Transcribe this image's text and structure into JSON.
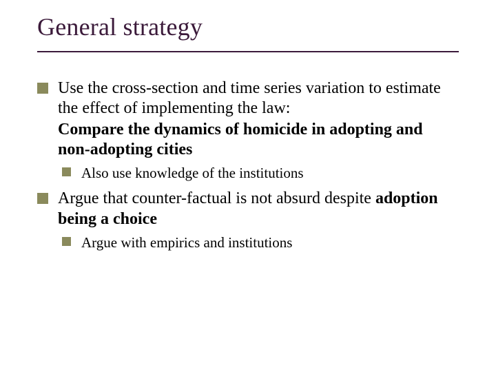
{
  "slide": {
    "title": "General strategy",
    "title_color": "#3b1a3a",
    "title_fontsize": 36,
    "rule_color": "#3b1a3a",
    "bullet_color": "#8a8a5c",
    "body_color": "#000000",
    "body_fontsize": 24,
    "sub_fontsize": 21,
    "background_color": "#ffffff",
    "items": [
      {
        "text": "Use the cross-section and time series variation to estimate the effect of implementing the law:",
        "bold_text": "Compare the dynamics of homicide in adopting and non-adopting cities",
        "sub": [
          {
            "text": "Also use knowledge of the institutions"
          }
        ]
      },
      {
        "text_prefix": "Argue that counter-factual is not absurd despite ",
        "bold_text": "adoption being a choice",
        "sub": [
          {
            "text": "Argue with empirics and institutions"
          }
        ]
      }
    ]
  }
}
